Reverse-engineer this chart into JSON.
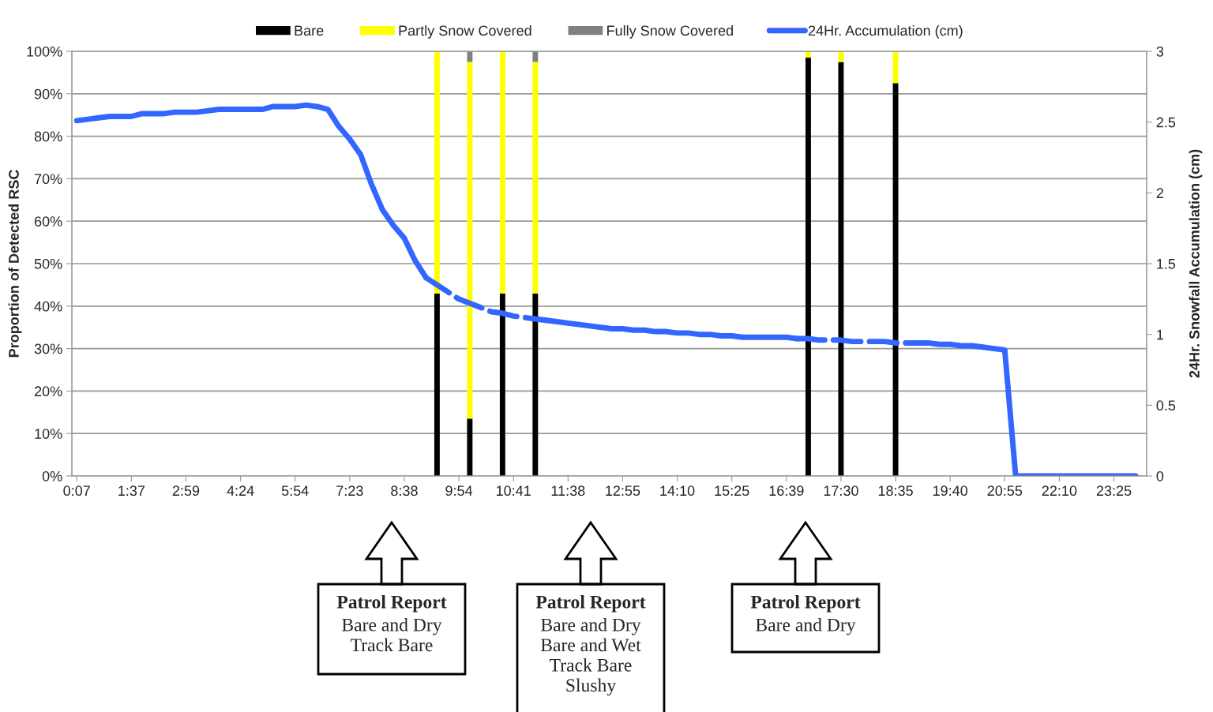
{
  "chart_data": {
    "type": "bar",
    "stacked": true,
    "ylabel": "Proportion of Detected RSC",
    "y2label": "24Hr. Snowfall Accumulation (cm)",
    "categories": [
      "0:07",
      null,
      null,
      null,
      null,
      "1:37",
      null,
      null,
      null,
      null,
      "2:59",
      null,
      null,
      null,
      null,
      "4:24",
      null,
      null,
      null,
      null,
      "5:54",
      null,
      null,
      null,
      null,
      "7:23",
      null,
      null,
      null,
      null,
      "8:38",
      null,
      null,
      null,
      null,
      "9:54",
      null,
      null,
      null,
      null,
      "10:41",
      null,
      null,
      null,
      null,
      "11:38",
      null,
      null,
      null,
      null,
      "12:55",
      null,
      null,
      null,
      null,
      "14:10",
      null,
      null,
      null,
      null,
      "15:25",
      null,
      null,
      null,
      null,
      "16:39",
      null,
      null,
      null,
      null,
      "17:30",
      null,
      null,
      null,
      null,
      "18:35",
      null,
      null,
      null,
      null,
      "19:40",
      null,
      null,
      null,
      null,
      "20:55",
      null,
      null,
      null,
      null,
      "22:10",
      null,
      null,
      null,
      null,
      "23:25",
      null,
      null
    ],
    "ylim": [
      0,
      100
    ],
    "yticks": [
      {
        "value": 0,
        "label": "0%"
      },
      {
        "value": 10,
        "label": "10%"
      },
      {
        "value": 20,
        "label": "20%"
      },
      {
        "value": 30,
        "label": "30%"
      },
      {
        "value": 40,
        "label": "40%"
      },
      {
        "value": 50,
        "label": "50%"
      },
      {
        "value": 60,
        "label": "60%"
      },
      {
        "value": 70,
        "label": "70%"
      },
      {
        "value": 80,
        "label": "80%"
      },
      {
        "value": 90,
        "label": "90%"
      },
      {
        "value": 100,
        "label": "100%"
      }
    ],
    "y2lim": [
      0,
      3
    ],
    "y2ticks": [
      0,
      0.5,
      1,
      1.5,
      2,
      2.5,
      3
    ],
    "grid": "y",
    "legend": "top",
    "series": [
      {
        "name": "Bare",
        "color": "#000000",
        "values": [
          null,
          null,
          null,
          null,
          null,
          null,
          null,
          null,
          null,
          null,
          null,
          null,
          null,
          null,
          null,
          null,
          null,
          null,
          null,
          null,
          null,
          null,
          null,
          null,
          null,
          null,
          null,
          null,
          null,
          null,
          null,
          null,
          null,
          43,
          null,
          null,
          13.5,
          null,
          null,
          43,
          null,
          null,
          43,
          null,
          null,
          null,
          null,
          null,
          null,
          null,
          null,
          null,
          null,
          null,
          null,
          null,
          null,
          null,
          null,
          null,
          null,
          null,
          null,
          null,
          null,
          null,
          null,
          98.5,
          null,
          null,
          97.5,
          null,
          null,
          null,
          null,
          92.5,
          null,
          null,
          null,
          null,
          null,
          null,
          null,
          null,
          null,
          null,
          null,
          null,
          null,
          null,
          null,
          null,
          null,
          null,
          null,
          null,
          null,
          null
        ]
      },
      {
        "name": "Partly Snow Covered",
        "color": "#ffff00",
        "values": [
          null,
          null,
          null,
          null,
          null,
          null,
          null,
          null,
          null,
          null,
          null,
          null,
          null,
          null,
          null,
          null,
          null,
          null,
          null,
          null,
          null,
          null,
          null,
          null,
          null,
          null,
          null,
          null,
          null,
          null,
          null,
          null,
          null,
          57,
          null,
          null,
          84,
          null,
          null,
          57,
          null,
          null,
          54.5,
          null,
          null,
          null,
          null,
          null,
          null,
          null,
          null,
          null,
          null,
          null,
          null,
          null,
          null,
          null,
          null,
          null,
          null,
          null,
          null,
          null,
          null,
          null,
          null,
          1.5,
          null,
          null,
          2.5,
          null,
          null,
          null,
          null,
          7.5,
          null,
          null,
          null,
          null,
          null,
          null,
          null,
          null,
          null,
          null,
          null,
          null,
          null,
          null,
          null,
          null,
          null,
          null,
          null,
          null,
          null,
          null
        ]
      },
      {
        "name": "Fully Snow Covered",
        "color": "#808080",
        "values": [
          null,
          null,
          null,
          null,
          null,
          null,
          null,
          null,
          null,
          null,
          null,
          null,
          null,
          null,
          null,
          null,
          null,
          null,
          null,
          null,
          null,
          null,
          null,
          null,
          null,
          null,
          null,
          null,
          null,
          null,
          null,
          null,
          null,
          null,
          null,
          null,
          2.5,
          null,
          null,
          null,
          null,
          null,
          2.5,
          null,
          null,
          null,
          null,
          null,
          null,
          null,
          null,
          null,
          null,
          null,
          null,
          null,
          null,
          null,
          null,
          null,
          null,
          null,
          null,
          null,
          null,
          null,
          null,
          null,
          null,
          null,
          null,
          null,
          null,
          null,
          null,
          null,
          null,
          null,
          null,
          null,
          null,
          null,
          null,
          null,
          null,
          null,
          null,
          null,
          null,
          null,
          null,
          null,
          null,
          null,
          null,
          null,
          null,
          null
        ]
      },
      {
        "name": "24Hr. Accumulation (cm)",
        "type": "line",
        "axis": "y2",
        "line_style": "solid",
        "color": "#3366ff",
        "values": [
          2.51,
          2.52,
          2.53,
          2.54,
          2.54,
          2.54,
          2.56,
          2.56,
          2.56,
          2.57,
          2.57,
          2.57,
          2.58,
          2.59,
          2.59,
          2.59,
          2.59,
          2.59,
          2.61,
          2.61,
          2.61,
          2.62,
          2.61,
          2.59,
          2.47,
          2.38,
          2.27,
          2.06,
          1.88,
          1.77,
          1.68,
          1.52,
          1.4,
          null,
          null,
          null,
          null,
          null,
          null,
          null,
          null,
          null,
          null,
          1.1,
          1.09,
          1.08,
          1.07,
          1.06,
          1.05,
          1.04,
          1.04,
          1.03,
          1.03,
          1.02,
          1.02,
          1.01,
          1.01,
          1.0,
          1.0,
          0.99,
          0.99,
          0.98,
          0.98,
          0.98,
          0.98,
          0.98,
          0.97,
          null,
          null,
          null,
          null,
          null,
          null,
          null,
          null,
          null,
          0.94,
          0.94,
          0.94,
          0.93,
          0.93,
          0.92,
          0.92,
          0.91,
          0.9,
          0.89,
          0,
          0,
          0,
          0,
          0,
          0,
          0,
          0,
          0,
          0,
          0,
          0
        ]
      },
      {
        "type": "line",
        "axis": "y2",
        "line_style": "dashed",
        "color": "#3366ff",
        "values": [
          null,
          null,
          null,
          null,
          null,
          null,
          null,
          null,
          null,
          null,
          null,
          null,
          null,
          null,
          null,
          null,
          null,
          null,
          null,
          null,
          null,
          null,
          null,
          null,
          null,
          null,
          null,
          null,
          null,
          null,
          null,
          null,
          1.4,
          1.35,
          1.3,
          1.25,
          1.22,
          1.19,
          1.16,
          1.15,
          1.13,
          1.12,
          1.11,
          1.1,
          null,
          null,
          null,
          null,
          null,
          null,
          null,
          null,
          null,
          null,
          null,
          null,
          null,
          null,
          null,
          null,
          null,
          null,
          null,
          null,
          null,
          null,
          null,
          null,
          null,
          null,
          null,
          null,
          null,
          null,
          null,
          null,
          null,
          null,
          null,
          null,
          null,
          null,
          null,
          null,
          null,
          null,
          null,
          null,
          null,
          null,
          null,
          null,
          null,
          null,
          null,
          null,
          null,
          null
        ]
      },
      {
        "type": "line",
        "axis": "y2",
        "line_style": "dashed",
        "color": "#3467fe",
        "values": [
          null,
          null,
          null,
          null,
          null,
          null,
          null,
          null,
          null,
          null,
          null,
          null,
          null,
          null,
          null,
          null,
          null,
          null,
          null,
          null,
          null,
          null,
          null,
          null,
          null,
          null,
          null,
          null,
          null,
          null,
          null,
          null,
          null,
          null,
          null,
          null,
          null,
          null,
          null,
          null,
          null,
          null,
          null,
          null,
          null,
          null,
          null,
          null,
          null,
          null,
          null,
          null,
          null,
          null,
          null,
          null,
          null,
          null,
          null,
          null,
          null,
          null,
          null,
          null,
          null,
          null,
          0.97,
          0.97,
          0.96,
          0.96,
          0.96,
          0.95,
          0.95,
          0.95,
          0.95,
          0.94,
          0.94,
          null,
          null,
          null,
          null,
          null,
          null,
          null,
          null,
          null,
          null,
          null,
          null,
          null,
          null,
          null,
          null,
          null,
          null,
          null,
          null,
          null
        ]
      }
    ],
    "annotations": [
      "Patrol Report\nBare and Dry\nTrack Bare",
      "Patrol Report\nBare and Dry\nBare and Wet\nTrack Bare\nSlushy",
      "Patrol Report\nBare and Dry"
    ]
  }
}
